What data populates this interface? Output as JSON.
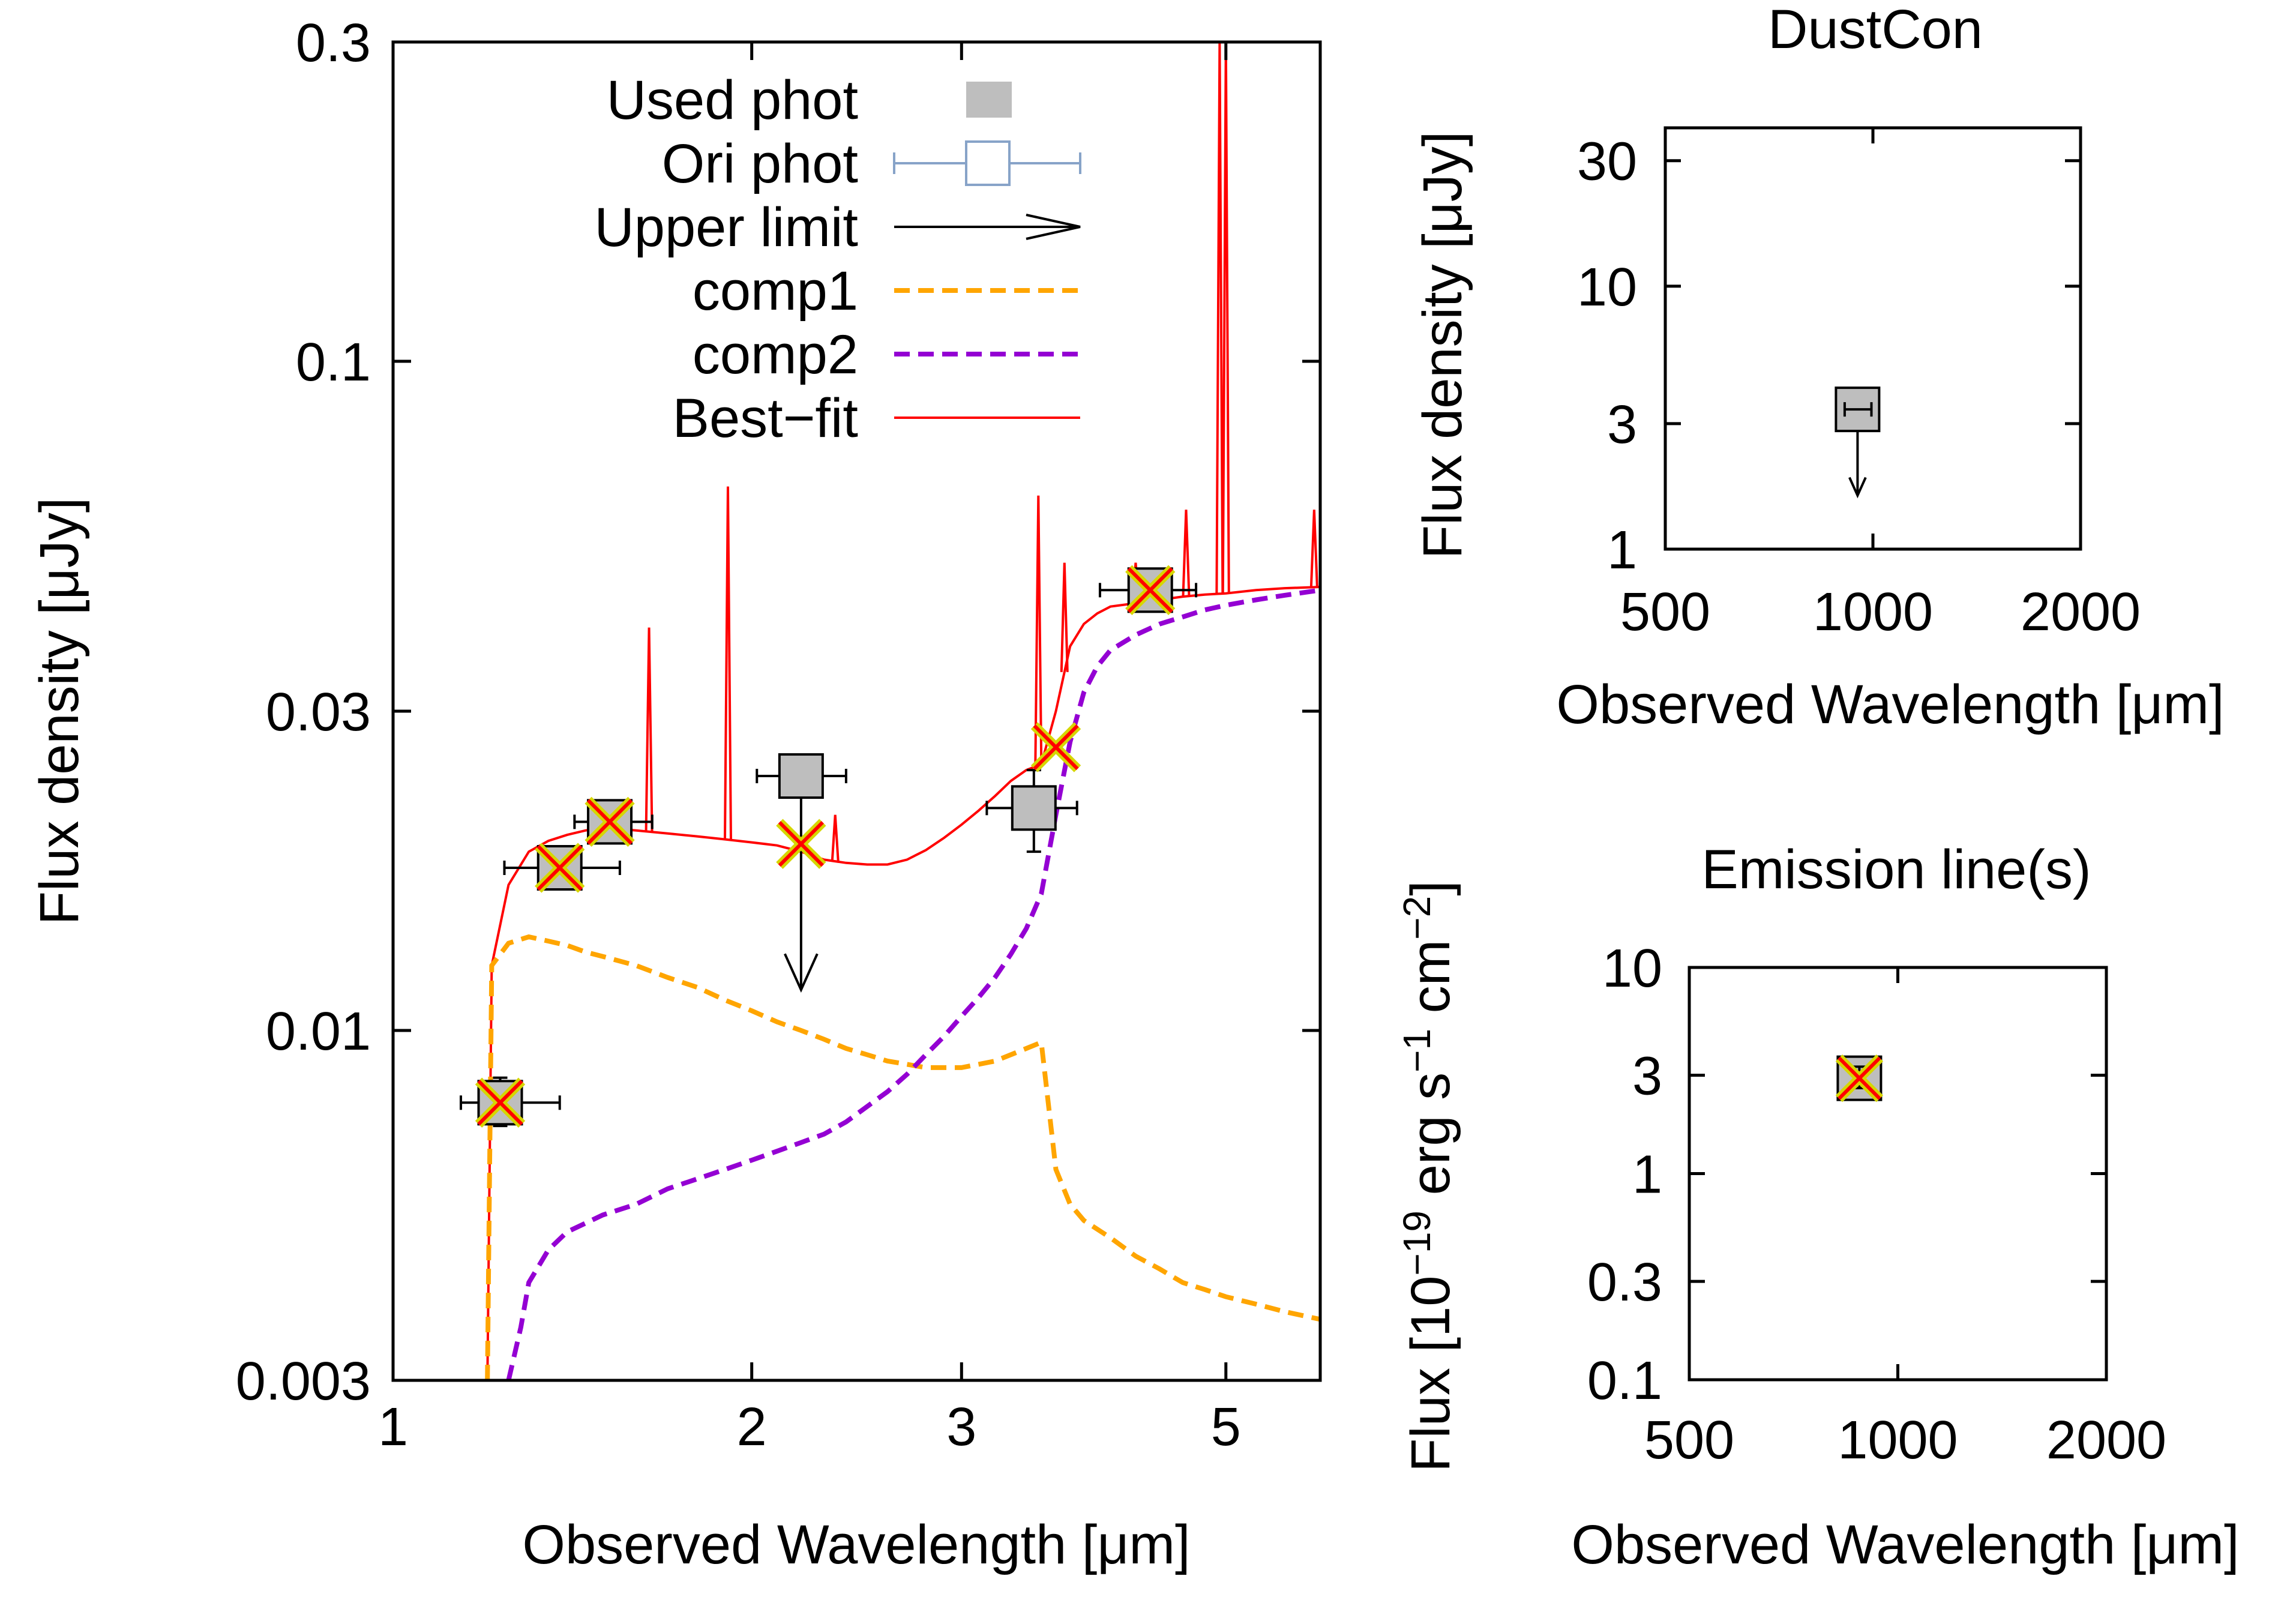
{
  "chart_data": [
    {
      "type": "line",
      "panel": "main",
      "xlabel": "Observed Wavelength [μm]",
      "ylabel": "Flux density [μJy]",
      "xscale": "log",
      "yscale": "log",
      "xlim": [
        1,
        6
      ],
      "ylim": [
        0.003,
        0.3
      ],
      "x_ticks": [
        1,
        2,
        3,
        5
      ],
      "y_ticks": [
        0.003,
        0.01,
        0.03,
        0.1,
        0.3
      ],
      "legend_position": "top-right",
      "legend": {
        "used_phot": "Used phot",
        "ori_phot": "Ori phot",
        "upper_limit": "Upper limit",
        "comp1": "comp1",
        "comp2": "comp2",
        "best_fit": "Best−fit"
      },
      "colors": {
        "best_fit": "#ff0000",
        "comp1": "#ffa500",
        "comp2": "#9400d3",
        "used_phot_fill": "#bebebe",
        "ori_phot": "#87a3c8",
        "model_cross": "#d6d600"
      },
      "series": [
        {
          "key": "best_fit",
          "x": [
            1.2,
            1.21,
            1.25,
            1.3,
            1.35,
            1.4,
            1.45,
            1.5,
            1.6,
            1.7,
            1.8,
            1.9,
            2.0,
            2.1,
            2.2,
            2.3,
            2.4,
            2.5,
            2.6,
            2.7,
            2.8,
            2.9,
            3.0,
            3.1,
            3.2,
            3.3,
            3.4,
            3.5,
            3.6,
            3.7,
            3.8,
            3.9,
            4.0,
            4.2,
            4.4,
            4.6,
            4.8,
            5.0,
            5.3,
            5.6,
            6.0
          ],
          "y": [
            0.003,
            0.0125,
            0.0165,
            0.0185,
            0.0192,
            0.0196,
            0.0199,
            0.0201,
            0.0199,
            0.0197,
            0.0195,
            0.0193,
            0.0191,
            0.0189,
            0.0185,
            0.018,
            0.0178,
            0.0177,
            0.0177,
            0.018,
            0.0186,
            0.0194,
            0.0203,
            0.0213,
            0.0224,
            0.0236,
            0.0245,
            0.025,
            0.03,
            0.0375,
            0.0405,
            0.042,
            0.043,
            0.0435,
            0.044,
            0.0445,
            0.0448,
            0.045,
            0.0455,
            0.0458,
            0.046
          ]
        },
        {
          "key": "comp1",
          "x": [
            1.2,
            1.21,
            1.25,
            1.3,
            1.35,
            1.4,
            1.45,
            1.5,
            1.6,
            1.7,
            1.8,
            1.9,
            2.0,
            2.1,
            2.2,
            2.3,
            2.4,
            2.5,
            2.6,
            2.7,
            2.8,
            2.9,
            3.0,
            3.1,
            3.2,
            3.3,
            3.4,
            3.5,
            3.6,
            3.7,
            3.8,
            4.0,
            4.2,
            4.4,
            4.6,
            4.8,
            5.0,
            5.3,
            5.6,
            6.0
          ],
          "y": [
            0.003,
            0.0125,
            0.0135,
            0.0138,
            0.0136,
            0.0134,
            0.0131,
            0.0129,
            0.0125,
            0.012,
            0.0116,
            0.0111,
            0.0107,
            0.0103,
            0.01,
            0.0097,
            0.0094,
            0.0092,
            0.009,
            0.0089,
            0.0088,
            0.0088,
            0.0088,
            0.0089,
            0.009,
            0.0092,
            0.0094,
            0.0096,
            0.0062,
            0.0055,
            0.0052,
            0.0049,
            0.0046,
            0.0044,
            0.0042,
            0.0041,
            0.004,
            0.0039,
            0.0038,
            0.0037
          ]
        },
        {
          "key": "comp2",
          "x": [
            1.25,
            1.28,
            1.3,
            1.35,
            1.4,
            1.5,
            1.6,
            1.7,
            1.8,
            1.9,
            2.0,
            2.1,
            2.2,
            2.3,
            2.4,
            2.5,
            2.6,
            2.7,
            2.8,
            2.9,
            3.0,
            3.1,
            3.2,
            3.3,
            3.4,
            3.5,
            3.6,
            3.7,
            3.8,
            3.9,
            4.0,
            4.2,
            4.4,
            4.6,
            4.8,
            5.0,
            5.3,
            5.6,
            6.0
          ],
          "y": [
            0.003,
            0.0036,
            0.0042,
            0.0047,
            0.005,
            0.0053,
            0.0055,
            0.0058,
            0.006,
            0.0062,
            0.0064,
            0.0066,
            0.0068,
            0.007,
            0.0073,
            0.0077,
            0.0081,
            0.0086,
            0.0092,
            0.0098,
            0.0105,
            0.0112,
            0.012,
            0.013,
            0.0142,
            0.016,
            0.021,
            0.027,
            0.032,
            0.035,
            0.037,
            0.039,
            0.0405,
            0.0415,
            0.0425,
            0.0432,
            0.044,
            0.0447,
            0.0455
          ]
        }
      ],
      "emission_lines": [
        {
          "x": 1.64,
          "peak": 0.04
        },
        {
          "x": 1.91,
          "peak": 0.065
        },
        {
          "x": 2.35,
          "peak": 0.021
        },
        {
          "x": 3.48,
          "peak": 0.063
        },
        {
          "x": 3.66,
          "peak": 0.05
        },
        {
          "x": 4.2,
          "peak": 0.05
        },
        {
          "x": 4.63,
          "peak": 0.06
        },
        {
          "x": 4.94,
          "peak": 0.3
        },
        {
          "x": 5.0,
          "peak": 0.3
        },
        {
          "x": 5.93,
          "peak": 0.06
        }
      ],
      "used_phot": [
        {
          "x": 1.23,
          "y": 0.0078,
          "xerr": [
            1.14,
            1.38
          ],
          "yerr": [
            0.0072,
            0.0085
          ]
        },
        {
          "x": 1.38,
          "y": 0.0175,
          "xerr": [
            1.24,
            1.55
          ],
          "yerr": [
            0.0165,
            0.0186
          ]
        },
        {
          "x": 1.52,
          "y": 0.0205,
          "xerr": [
            1.42,
            1.65
          ],
          "yerr": [
            0.0195,
            0.0216
          ]
        },
        {
          "x": 3.45,
          "y": 0.0215,
          "xerr": [
            3.15,
            3.75
          ],
          "yerr": [
            0.0185,
            0.0245
          ]
        },
        {
          "x": 4.32,
          "y": 0.0455,
          "xerr": [
            3.92,
            4.72
          ],
          "yerr": [
            0.0435,
            0.0476
          ]
        }
      ],
      "upper_limits": [
        {
          "x": 2.2,
          "y": 0.024,
          "xerr": [
            2.02,
            2.4
          ],
          "arrow_to": 0.0115
        }
      ],
      "model_phot": [
        {
          "x": 1.23,
          "y": 0.0078
        },
        {
          "x": 1.38,
          "y": 0.0175
        },
        {
          "x": 1.52,
          "y": 0.0205
        },
        {
          "x": 2.2,
          "y": 0.019
        },
        {
          "x": 3.6,
          "y": 0.0265
        },
        {
          "x": 4.32,
          "y": 0.0455
        }
      ]
    },
    {
      "type": "scatter",
      "panel": "dust",
      "title": "DustCon",
      "xlabel": "Observed Wavelength [μm]",
      "ylabel": "Flux density [μJy]",
      "xscale": "log",
      "yscale": "log",
      "xlim": [
        500,
        2000
      ],
      "ylim": [
        1,
        40
      ],
      "x_ticks": [
        500,
        1000,
        2000
      ],
      "y_ticks": [
        1,
        3,
        10,
        30
      ],
      "upper_limits": [
        {
          "x": 950,
          "y": 3.4,
          "xerr": [
            910,
            995
          ],
          "arrow_to": 1.6
        }
      ]
    },
    {
      "type": "scatter",
      "panel": "lines",
      "title": "Emission line(s)",
      "xlabel": "Observed Wavelength [μm]",
      "ylabel_parts": [
        "Flux [10",
        "−19",
        " erg s",
        "−1",
        " cm",
        "−2",
        "]"
      ],
      "xscale": "log",
      "yscale": "log",
      "xlim": [
        500,
        2000
      ],
      "ylim": [
        0.1,
        10
      ],
      "x_ticks": [
        500,
        1000,
        2000
      ],
      "y_ticks": [
        0.1,
        0.3,
        1,
        3,
        10
      ],
      "used_phot": [
        {
          "x": 880,
          "y": 2.9,
          "yerr": [
            2.6,
            3.3
          ]
        }
      ],
      "model_phot": [
        {
          "x": 880,
          "y": 2.9
        }
      ]
    }
  ]
}
